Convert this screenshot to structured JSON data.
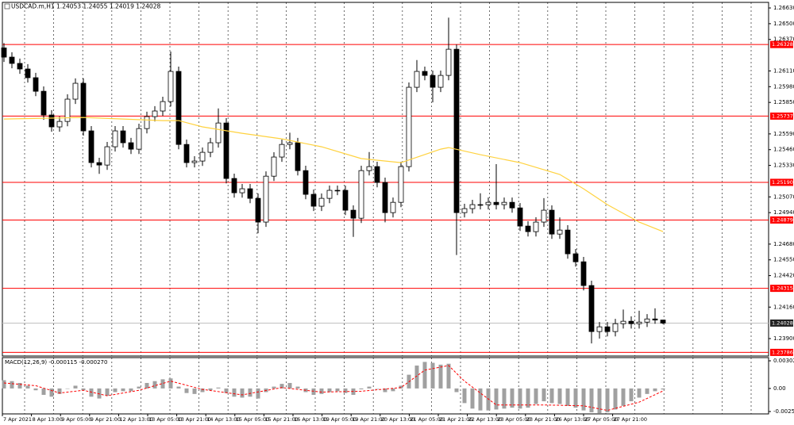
{
  "chart_data": {
    "type": "candlestick",
    "title": "USDCAD.m,H1  1.24053 1.24055 1.24019 1.24028",
    "ylim": [
      1.23756,
      1.26676
    ],
    "yticks": [
      {
        "value": 1.2663,
        "label": "1.26630"
      },
      {
        "value": 1.265,
        "label": "1.26500"
      },
      {
        "value": 1.2637,
        "label": "1.26370"
      },
      {
        "value": 1.2611,
        "label": "1.26110"
      },
      {
        "value": 1.2598,
        "label": "1.25980"
      },
      {
        "value": 1.2585,
        "label": "1.25850"
      },
      {
        "value": 1.2559,
        "label": "1.25590"
      },
      {
        "value": 1.2546,
        "label": "1.25460"
      },
      {
        "value": 1.2533,
        "label": "1.25330"
      },
      {
        "value": 1.2507,
        "label": "1.25070"
      },
      {
        "value": 1.2494,
        "label": "1.24940"
      },
      {
        "value": 1.2468,
        "label": "1.24680"
      },
      {
        "value": 1.2455,
        "label": "1.24550"
      },
      {
        "value": 1.2442,
        "label": "1.24420"
      },
      {
        "value": 1.2416,
        "label": "1.24160"
      },
      {
        "value": 1.239,
        "label": "1.23900"
      }
    ],
    "color_up": "#ffffff",
    "color_down": "#000000",
    "open": [
      1.263,
      1.26224,
      1.26172,
      1.26126,
      1.26054,
      1.25942,
      1.25746,
      1.25648,
      1.25693,
      1.25877,
      1.26008,
      1.25615,
      1.25353,
      1.25333,
      1.25484,
      1.25615,
      1.25517,
      1.25464,
      1.25634,
      1.25733,
      1.25779,
      1.25857,
      1.26106,
      1.25503,
      1.25353,
      1.25366,
      1.25438,
      1.25517,
      1.2568,
      1.25222,
      1.25104,
      1.25137,
      1.25058,
      1.24862,
      1.25241,
      1.25399,
      1.25503,
      1.25517,
      1.25287,
      1.25091,
      1.24993,
      1.25058,
      1.25124,
      1.25124,
      1.2496,
      1.24894,
      1.25287,
      1.2532,
      1.25189,
      1.2494,
      1.25025,
      1.2532,
      1.25975,
      1.26106,
      1.26073,
      1.25975,
      1.26073,
      1.26289,
      1.2494,
      1.24973,
      1.25006,
      1.25006,
      1.25025,
      1.25006,
      1.25025,
      1.24979,
      1.24829,
      1.24783,
      1.24862,
      1.2496,
      1.24763,
      1.24796,
      1.246,
      1.24534,
      1.24338,
      1.23958,
      1.23997,
      1.23958,
      1.24023,
      1.24043,
      1.24023,
      1.24036,
      1.24062,
      1.24053
    ],
    "high": [
      1.2634,
      1.26264,
      1.26212,
      1.26166,
      1.26094,
      1.25982,
      1.25786,
      1.25733,
      1.25917,
      1.26048,
      1.26048,
      1.25655,
      1.25393,
      1.25524,
      1.25655,
      1.25655,
      1.25557,
      1.25674,
      1.25773,
      1.25819,
      1.25897,
      1.2627,
      1.26146,
      1.25543,
      1.25406,
      1.25478,
      1.25557,
      1.258,
      1.2572,
      1.25262,
      1.25177,
      1.25177,
      1.25098,
      1.25281,
      1.25439,
      1.25543,
      1.256,
      1.25557,
      1.25327,
      1.25131,
      1.25098,
      1.25164,
      1.25164,
      1.25164,
      1.25,
      1.25327,
      1.2544,
      1.2536,
      1.25229,
      1.25065,
      1.2536,
      1.26015,
      1.262,
      1.26146,
      1.26113,
      1.26113,
      1.2655,
      1.26329,
      1.25013,
      1.25046,
      1.251,
      1.25065,
      1.2534,
      1.25065,
      1.25065,
      1.25019,
      1.24869,
      1.24902,
      1.2506,
      1.25,
      1.249,
      1.24836,
      1.2464,
      1.24574,
      1.24378,
      1.24037,
      1.24037,
      1.24063,
      1.2414,
      1.24083,
      1.2413,
      1.24102,
      1.2415,
      1.24055
    ],
    "low": [
      1.26184,
      1.26132,
      1.26086,
      1.26014,
      1.25902,
      1.25706,
      1.25608,
      1.25608,
      1.25653,
      1.25837,
      1.25575,
      1.25313,
      1.2526,
      1.25293,
      1.25444,
      1.25477,
      1.25424,
      1.25424,
      1.25594,
      1.25693,
      1.25739,
      1.25817,
      1.25463,
      1.25313,
      1.25313,
      1.25326,
      1.25398,
      1.25477,
      1.25182,
      1.25064,
      1.25064,
      1.25018,
      1.2477,
      1.24822,
      1.25201,
      1.25359,
      1.25463,
      1.25247,
      1.25051,
      1.24953,
      1.24953,
      1.25018,
      1.25084,
      1.2492,
      1.2474,
      1.24854,
      1.25247,
      1.25149,
      1.2486,
      1.249,
      1.24985,
      1.2528,
      1.25935,
      1.26033,
      1.2585,
      1.25935,
      1.26033,
      1.2459,
      1.249,
      1.24933,
      1.24966,
      1.24966,
      1.24966,
      1.24966,
      1.24939,
      1.24789,
      1.24743,
      1.24743,
      1.24822,
      1.24723,
      1.24723,
      1.2456,
      1.24494,
      1.24298,
      1.2386,
      1.239,
      1.23918,
      1.23918,
      1.23983,
      1.23983,
      1.23983,
      1.23996,
      1.24022,
      1.24019
    ],
    "close": [
      1.26224,
      1.26172,
      1.26126,
      1.26054,
      1.25942,
      1.25746,
      1.25648,
      1.25693,
      1.25877,
      1.26008,
      1.25615,
      1.25353,
      1.25333,
      1.25484,
      1.25615,
      1.25517,
      1.25464,
      1.25634,
      1.25733,
      1.25779,
      1.25857,
      1.26106,
      1.25503,
      1.25353,
      1.25366,
      1.25438,
      1.25517,
      1.2568,
      1.25222,
      1.25104,
      1.25137,
      1.25058,
      1.24862,
      1.25241,
      1.25399,
      1.25503,
      1.25517,
      1.25287,
      1.25091,
      1.24993,
      1.25058,
      1.25124,
      1.25124,
      1.2496,
      1.24894,
      1.25287,
      1.2532,
      1.25189,
      1.2494,
      1.25025,
      1.2532,
      1.25975,
      1.26106,
      1.26073,
      1.25975,
      1.26073,
      1.26289,
      1.2494,
      1.24973,
      1.25006,
      1.25006,
      1.25025,
      1.25006,
      1.25025,
      1.24979,
      1.24829,
      1.24783,
      1.24862,
      1.2496,
      1.24763,
      1.24796,
      1.246,
      1.24534,
      1.24338,
      1.23958,
      1.23997,
      1.23958,
      1.24023,
      1.24043,
      1.24023,
      1.24036,
      1.24062,
      1.24053,
      1.24028
    ],
    "ma": {
      "color": "#ffd23f",
      "x": [
        0,
        10,
        20,
        22,
        25,
        30,
        35,
        40,
        45,
        50,
        55,
        56,
        60,
        65,
        70,
        73,
        76,
        80,
        83
      ],
      "values": [
        1.25713,
        1.25726,
        1.257,
        1.257,
        1.25648,
        1.25595,
        1.25549,
        1.25484,
        1.25386,
        1.25353,
        1.25464,
        1.25477,
        1.25418,
        1.25353,
        1.25255,
        1.25137,
        1.25006,
        1.24862,
        1.24783
      ]
    },
    "levels": {
      "color": "#ff0000",
      "values": [
        1.26328,
        1.25737,
        {
          "value": 1.2519,
          "label": "1.25190"
        },
        1.24879,
        1.24315,
        1.23786
      ]
    },
    "current_price": 1.24028,
    "time_labels": [
      "7 Apr 2021",
      "8 Apr 13:00",
      "9 Apr 05:00",
      "9 Apr 21:00",
      "12 Apr 13:00",
      "13 Apr 05:00",
      "13 Apr 21:00",
      "14 Apr 13:00",
      "15 Apr 05:00",
      "15 Apr 21:00",
      "16 Apr 13:00",
      "19 Apr 05:00",
      "19 Apr 21:00",
      "20 Apr 13:00",
      "21 Apr 05:00",
      "21 Apr 21:00",
      "22 Apr 13:00",
      "23 Apr 05:00",
      "23 Apr 21:00",
      "26 Apr 13:00",
      "27 Apr 05:00",
      "27 Apr 21:00"
    ],
    "macd": {
      "type": "bar",
      "title": "MACD(12,26,9) -0.000115 -0.000270",
      "ylim": [
        -0.00278,
        0.00337
      ],
      "yticks": [
        0.003021,
        {
          "value": 0,
          "label": "0.00"
        },
        -0.002521
      ],
      "color": "#a0a0a0",
      "values": [
        0.0009,
        0.0008,
        0.0006,
        0.0003,
        -0.0002,
        -0.0007,
        -0.0009,
        -0.0006,
        0,
        0.0003,
        -0.0002,
        -0.0009,
        -0.0011,
        -0.0008,
        -0.0004,
        -0.0003,
        -0.0003,
        0.0002,
        0.0006,
        0.0008,
        0.001,
        0.0011,
        0.0002,
        -0.0005,
        -0.0006,
        -0.0004,
        -0.0002,
        0.0001,
        -0.0005,
        -0.0009,
        -0.001,
        -0.0009,
        -0.0011,
        -0.0004,
        0.0002,
        0.0005,
        0.0006,
        0.0002,
        -0.0004,
        -0.0007,
        -0.0006,
        -0.0004,
        -0.0003,
        -0.0005,
        -0.0007,
        -0.0001,
        0.0002,
        0,
        -0.0004,
        -0.0003,
        0.0003,
        0.0015,
        0.0025,
        0.0029,
        0.0028,
        0.0026,
        0.0027,
        -0.0004,
        -0.0016,
        -0.0022,
        -0.0024,
        -0.0024,
        -0.0023,
        -0.0022,
        -0.0021,
        -0.0022,
        -0.0021,
        -0.0017,
        -0.0014,
        -0.0016,
        -0.0017,
        -0.0019,
        -0.0021,
        -0.0024,
        -0.0026,
        -0.0027,
        -0.0026,
        -0.0023,
        -0.0019,
        -0.0014,
        -0.001,
        -0.0006,
        -0.0003,
        -0.000115
      ],
      "signal": {
        "color": "#ff0000",
        "x": [
          0,
          4,
          7,
          10,
          13,
          17,
          21,
          25,
          30,
          35,
          40,
          45,
          50,
          53,
          56,
          58,
          62,
          68,
          73,
          76,
          80,
          83
        ],
        "values": [
          0.0006,
          0.0003,
          -0.0005,
          -0.0002,
          -0.0008,
          -0.0002,
          0.0008,
          -0.0001,
          -0.0007,
          0.0001,
          -0.0004,
          -0.0003,
          0.0001,
          0.002,
          0.0025,
          0.0008,
          -0.0018,
          -0.0018,
          -0.0019,
          -0.0024,
          -0.0015,
          -0.00027
        ]
      }
    }
  }
}
